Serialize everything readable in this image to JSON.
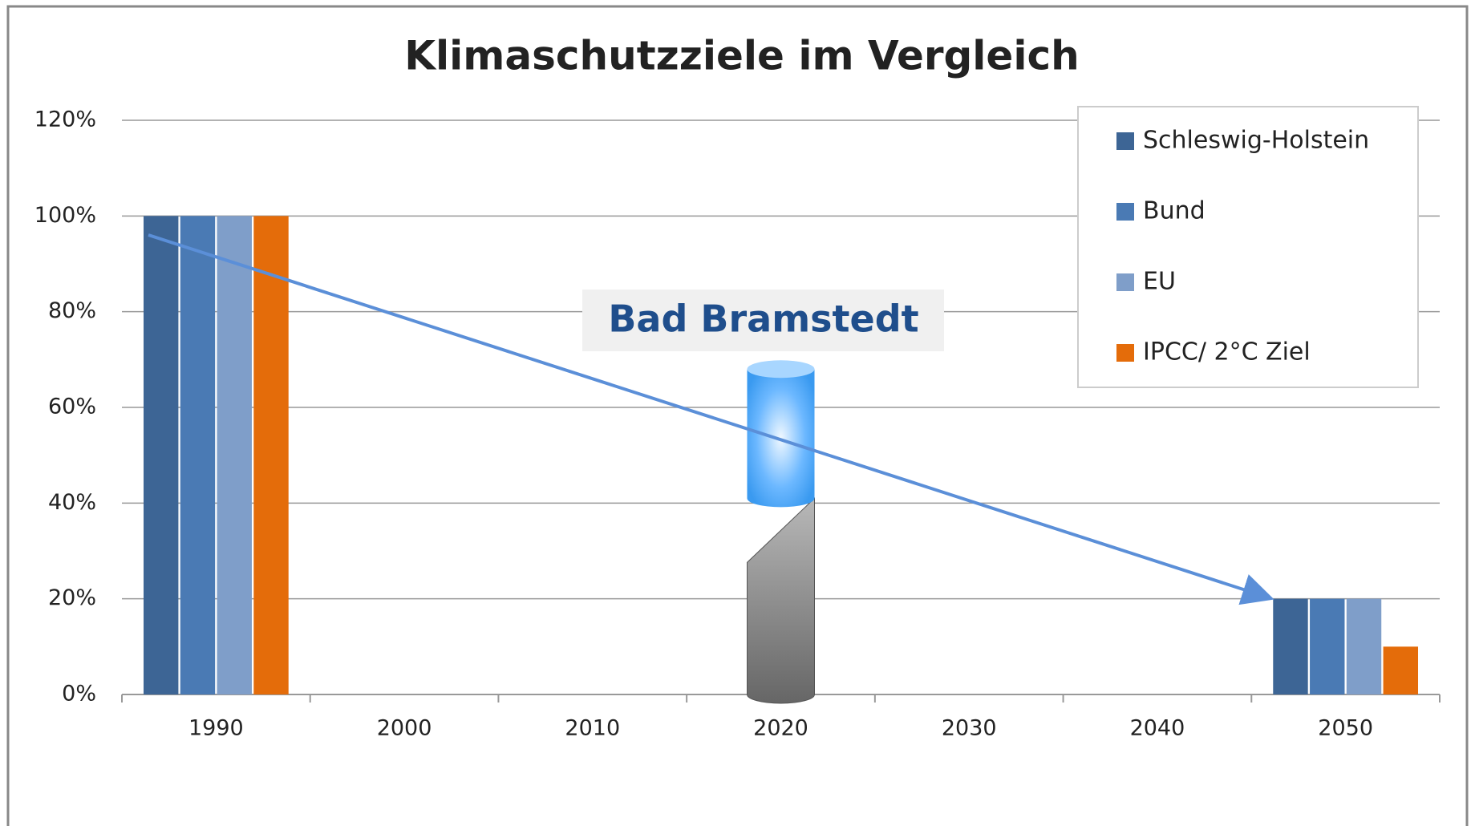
{
  "chart_data": {
    "type": "bar",
    "title": "Klimaschutzziele im Vergleich",
    "categories": [
      "1990",
      "2000",
      "2010",
      "2020",
      "2030",
      "2040",
      "2050"
    ],
    "series": [
      {
        "name": "Schleswig-Holstein",
        "color": "#3d6595",
        "values": [
          100,
          null,
          null,
          null,
          null,
          null,
          20
        ]
      },
      {
        "name": "Bund",
        "color": "#4a7ab4",
        "values": [
          100,
          null,
          null,
          null,
          null,
          null,
          20
        ]
      },
      {
        "name": "EU",
        "color": "#7f9ec9",
        "values": [
          100,
          null,
          null,
          null,
          null,
          null,
          20
        ]
      },
      {
        "name": "IPCC/ 2°C Ziel",
        "color": "#e46c0a",
        "values": [
          100,
          null,
          null,
          null,
          null,
          null,
          10
        ]
      }
    ],
    "ylim": [
      0,
      120
    ],
    "yticks": [
      {
        "value": 0,
        "label": "0%"
      },
      {
        "value": 20,
        "label": "20%"
      },
      {
        "value": 40,
        "label": "40%"
      },
      {
        "value": 60,
        "label": "60%"
      },
      {
        "value": 80,
        "label": "80%"
      },
      {
        "value": 100,
        "label": "100%"
      },
      {
        "value": 120,
        "label": "120%"
      }
    ],
    "grid": true,
    "legend": "top-right",
    "highlight": {
      "label": "Bad Bramstedt",
      "category": "2020",
      "current": 41,
      "target": 68
    }
  }
}
